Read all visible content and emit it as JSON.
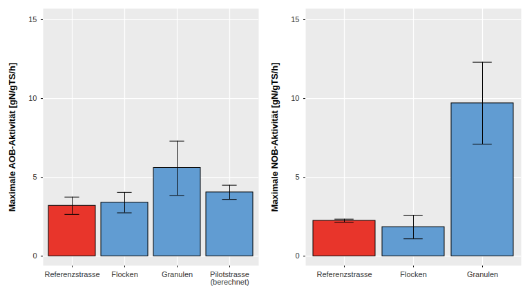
{
  "chart_data": [
    {
      "type": "bar",
      "y_label": "Maximale AOB-Aktivität [gN/gTS/h]",
      "categories": [
        "Referenzstrasse",
        "Flocken",
        "Granulen",
        "Pilotstrasse\n(berechnet)"
      ],
      "values": [
        3.2,
        3.4,
        5.6,
        4.05
      ],
      "error_bars": [
        [
          2.65,
          3.75
        ],
        [
          2.75,
          4.05
        ],
        [
          3.85,
          7.3
        ],
        [
          3.6,
          4.5
        ]
      ],
      "colors": [
        "#e8352b",
        "#619cd2",
        "#619cd2",
        "#619cd2"
      ],
      "ylim": [
        -0.6,
        15.7
      ],
      "yticks": [
        0,
        5,
        10,
        15
      ],
      "grid": true
    },
    {
      "type": "bar",
      "y_label": "Maximale NOB-Aktivität [gN/gTS/h]",
      "categories": [
        "Referenzstrasse",
        "Flocken",
        "Granulen"
      ],
      "values": [
        2.25,
        1.85,
        9.7
      ],
      "error_bars": [
        [
          2.15,
          2.35
        ],
        [
          1.1,
          2.6
        ],
        [
          7.1,
          12.3
        ]
      ],
      "colors": [
        "#e8352b",
        "#619cd2",
        "#619cd2"
      ],
      "ylim": [
        -0.6,
        15.7
      ],
      "yticks": [
        0,
        5,
        10,
        15
      ],
      "grid": true
    }
  ]
}
